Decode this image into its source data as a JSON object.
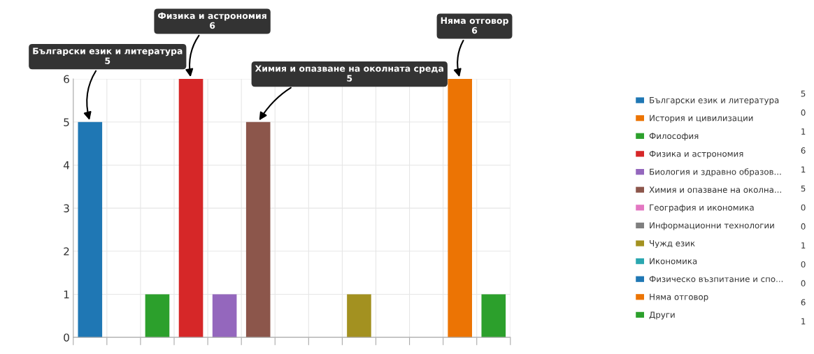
{
  "chart_data": {
    "type": "bar",
    "categories": [
      null,
      null,
      null,
      null,
      null,
      null,
      null,
      null,
      null,
      null,
      null,
      null,
      null
    ],
    "series": [
      {
        "name": "Български език и литература",
        "color": "#1f77b4",
        "values": [
          5,
          null,
          null,
          null,
          null,
          null,
          null,
          null,
          null,
          null,
          null,
          null,
          null
        ]
      },
      {
        "name": "История и цивилизации",
        "color": "#ec7404",
        "values": [
          null,
          0,
          null,
          null,
          null,
          null,
          null,
          null,
          null,
          null,
          null,
          null,
          null
        ]
      },
      {
        "name": "Философия",
        "color": "#2ca02c",
        "values": [
          null,
          null,
          1,
          null,
          null,
          null,
          null,
          null,
          null,
          null,
          null,
          null,
          null
        ]
      },
      {
        "name": "Физика и астрономия",
        "color": "#d62728",
        "values": [
          null,
          null,
          null,
          6,
          null,
          null,
          null,
          null,
          null,
          null,
          null,
          null,
          null
        ]
      },
      {
        "name": "Биология и здравно образов...",
        "color": "#9467bd",
        "values": [
          null,
          null,
          null,
          null,
          1,
          null,
          null,
          null,
          null,
          null,
          null,
          null,
          null
        ]
      },
      {
        "name": "Химия и опазване на околна...",
        "color": "#8c564b",
        "values": [
          null,
          null,
          null,
          null,
          null,
          5,
          null,
          null,
          null,
          null,
          null,
          null,
          null
        ]
      },
      {
        "name": "География и икономика",
        "color": "#e377c2",
        "values": [
          null,
          null,
          null,
          null,
          null,
          null,
          0,
          null,
          null,
          null,
          null,
          null,
          null
        ]
      },
      {
        "name": "Информационни технологии",
        "color": "#7f7f7f",
        "values": [
          null,
          null,
          null,
          null,
          null,
          null,
          null,
          0,
          null,
          null,
          null,
          null,
          null
        ]
      },
      {
        "name": "Чужд език",
        "color": "#a39120",
        "values": [
          null,
          null,
          null,
          null,
          null,
          null,
          null,
          null,
          1,
          null,
          null,
          null,
          null
        ]
      },
      {
        "name": "Икономика",
        "color": "#2aa7b0",
        "values": [
          null,
          null,
          null,
          null,
          null,
          null,
          null,
          null,
          null,
          0,
          null,
          null,
          null
        ]
      },
      {
        "name": "Физическо възпитание и спо...",
        "color": "#1f77b4",
        "values": [
          null,
          null,
          null,
          null,
          null,
          null,
          null,
          null,
          null,
          null,
          0,
          null,
          null
        ]
      },
      {
        "name": "Няма отговор",
        "color": "#ec7404",
        "values": [
          null,
          null,
          null,
          null,
          null,
          null,
          null,
          null,
          null,
          null,
          null,
          6,
          null
        ]
      },
      {
        "name": "Други",
        "color": "#2ca02c",
        "values": [
          null,
          null,
          null,
          null,
          null,
          null,
          null,
          null,
          null,
          null,
          null,
          null,
          1
        ]
      }
    ],
    "ylim": [
      0,
      6
    ],
    "yticks": [
      0,
      1,
      2,
      3,
      4,
      5,
      6
    ],
    "grid": true,
    "legend": "right",
    "tick_labels": "y",
    "annotations": [
      "Български език и литература\n5",
      "Физика и астрономия\n6",
      "Химия и опазване на околната среда\n5",
      "Няма отговор\n6",
      "5",
      "0",
      "1",
      "6",
      "1",
      "5",
      "0",
      "0",
      "1",
      "0",
      "0",
      "6",
      "1"
    ]
  }
}
